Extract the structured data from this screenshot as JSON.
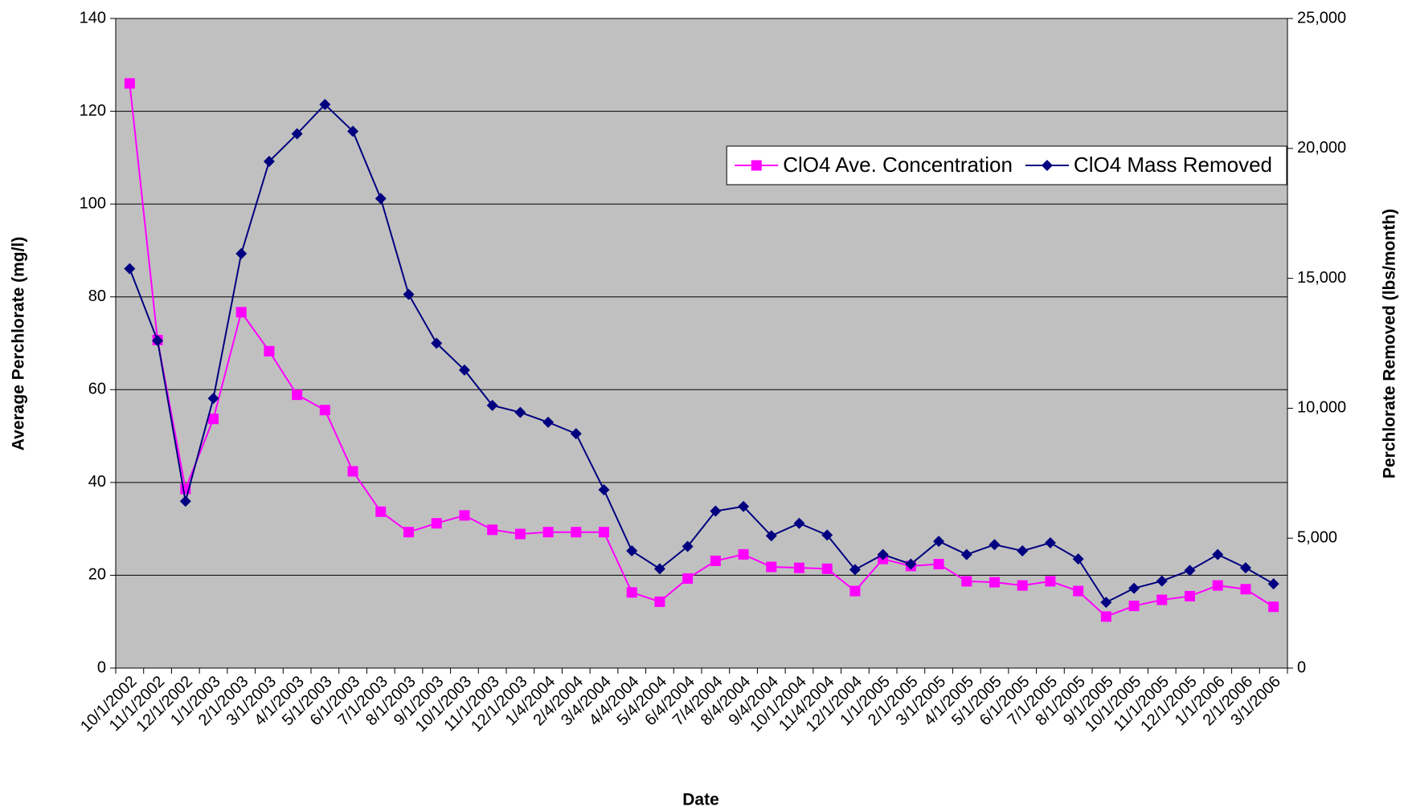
{
  "chart_data": {
    "type": "line",
    "xlabel": "Date",
    "ylabel": "Average Perchlorate (mg/l)",
    "y2label": "Perchlorate Removed (lbs/month)",
    "categories": [
      "10/1/2002",
      "11/1/2002",
      "12/1/2002",
      "1/1/2003",
      "2/1/2003",
      "3/1/2003",
      "4/1/2003",
      "5/1/2003",
      "6/1/2003",
      "7/1/2003",
      "8/1/2003",
      "9/1/2003",
      "10/1/2003",
      "11/1/2003",
      "12/1/2003",
      "1/4/2004",
      "2/4/2004",
      "3/4/2004",
      "4/4/2004",
      "5/4/2004",
      "6/4/2004",
      "7/4/2004",
      "8/4/2004",
      "9/4/2004",
      "10/1/2004",
      "11/4/2004",
      "12/1/2004",
      "1/1/2005",
      "2/1/2005",
      "3/1/2005",
      "4/1/2005",
      "5/1/2005",
      "6/1/2005",
      "7/1/2005",
      "8/1/2005",
      "9/1/2005",
      "10/1/2005",
      "11/1/2005",
      "12/1/2005",
      "1/1/2006",
      "2/1/2006",
      "3/1/2006"
    ],
    "series": [
      {
        "name": "ClO4 Ave. Concentration",
        "color": "#ff00ff",
        "marker": "square",
        "values": [
          126,
          70.7,
          38.6,
          53.7,
          76.7,
          68.3,
          58.9,
          55.6,
          42.4,
          33.7,
          29.3,
          31.2,
          32.9,
          29.8,
          28.9,
          29.3,
          29.3,
          29.3,
          16.3,
          14.3,
          19.3,
          23.1,
          24.5,
          21.8,
          21.6,
          21.4,
          16.6,
          23.5,
          22.0,
          22.4,
          18.7,
          18.5,
          17.8,
          18.7,
          16.6,
          11.1,
          13.4,
          14.7,
          15.5,
          17.8,
          17.0,
          13.2
        ]
      },
      {
        "name": "ClO4 Mass Removed",
        "color": "#000080",
        "marker": "diamond",
        "axis": "y2",
        "values": [
          15370,
          12600,
          6420,
          10380,
          15950,
          19500,
          20560,
          21690,
          20660,
          18070,
          14380,
          12500,
          11470,
          10110,
          9840,
          9460,
          9020,
          6860,
          4510,
          3820,
          4680,
          6040,
          6220,
          5090,
          5570,
          5120,
          3790,
          4370,
          4000,
          4880,
          4370,
          4750,
          4510,
          4820,
          4200,
          2530,
          3070,
          3350,
          3760,
          4370,
          3860,
          3240
        ]
      }
    ],
    "ylim": [
      0,
      140
    ],
    "yticks": [
      0,
      20,
      40,
      60,
      80,
      100,
      120,
      140
    ],
    "y2lim": [
      0,
      25000
    ],
    "y2ticks": [
      0,
      {
        "value": 5000,
        "label": "5,000"
      },
      {
        "value": 10000,
        "label": "10,000"
      },
      {
        "value": 15000,
        "label": "15,000"
      },
      {
        "value": 20000,
        "label": "20,000"
      },
      {
        "value": 25000,
        "label": "25,000"
      }
    ],
    "grid": true,
    "legend": "upper right",
    "background": "#c0c0c0"
  }
}
